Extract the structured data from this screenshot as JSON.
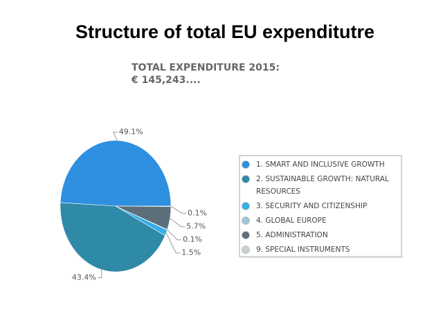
{
  "chart_data": {
    "type": "pie",
    "title": "Structure of total EU expenditutre",
    "subtitle": [
      "TOTAL EXPENDITURE 2015:",
      "€ 145,243...."
    ],
    "categories": [
      "1. SMART AND INCLUSIVE GROWTH",
      "2. SUSTAINABLE GROWTH: NATURAL RESOURCES",
      "3. SECURITY AND CITIZENSHIP",
      "4. GLOBAL EUROPE",
      "5. ADMINISTRATION",
      "9. SPECIAL INSTRUMENTS"
    ],
    "values": [
      49.1,
      43.4,
      1.5,
      0.1,
      5.7,
      0.1
    ],
    "value_labels": [
      "49.1%",
      "43.4%",
      "1.5%",
      "0.1%",
      "5.7%",
      "0.1%"
    ],
    "colors": [
      "#2f8fe0",
      "#2f8aa8",
      "#33aee8",
      "#9cc8dc",
      "#5c6f7b",
      "#c8d0d4"
    ],
    "legend": "right"
  }
}
